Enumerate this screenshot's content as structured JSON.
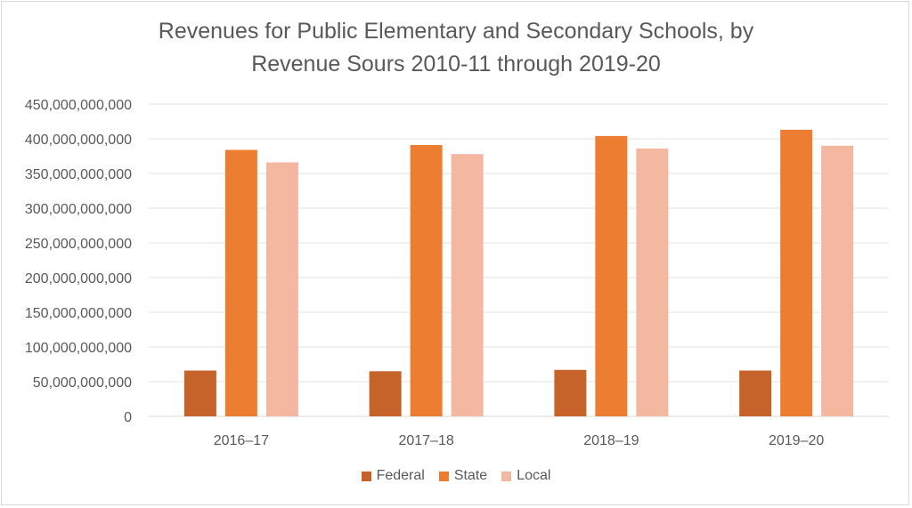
{
  "chart_data": {
    "type": "bar",
    "title": "Revenues for Public Elementary and Secondary Schools, by",
    "subtitle": "Revenue Sours 2010-11 through 2019-20",
    "categories": [
      "2016–17",
      "2017–18",
      "2018–19",
      "2019–20"
    ],
    "series": [
      {
        "name": "Federal",
        "color": "#c5632a",
        "values": [
          66000000000,
          65000000000,
          67000000000,
          66000000000
        ]
      },
      {
        "name": "State",
        "color": "#ed7d31",
        "values": [
          384000000000,
          391000000000,
          404000000000,
          413000000000
        ]
      },
      {
        "name": "Local",
        "color": "#f4b8a1",
        "values": [
          366000000000,
          378000000000,
          386000000000,
          390000000000
        ]
      }
    ],
    "ylim": [
      0,
      450000000000
    ],
    "yticks": [
      "0",
      "50,000,000,000",
      "100,000,000,000",
      "150,000,000,000",
      "200,000,000,000",
      "250,000,000,000",
      "300,000,000,000",
      "350,000,000,000",
      "400,000,000,000",
      "450,000,000,000"
    ],
    "grid": true,
    "legend_position": "bottom"
  }
}
